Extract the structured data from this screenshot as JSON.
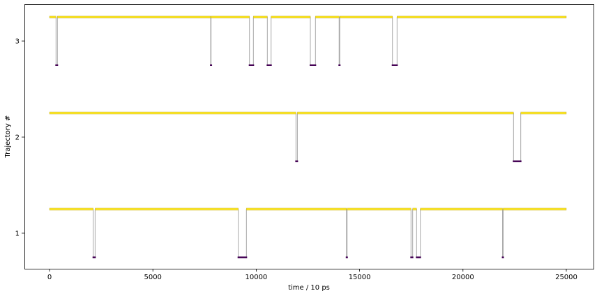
{
  "chart_data": {
    "type": "line",
    "title": "",
    "xlabel": "time / 10 ps",
    "ylabel": "Trajectory #",
    "xlim": [
      -1215,
      26316
    ],
    "ylim": [
      0.63,
      3.384
    ],
    "xticks": [
      0,
      5000,
      10000,
      15000,
      20000,
      25000
    ],
    "xtick_labels": [
      "0",
      "5000",
      "10000",
      "15000",
      "20000",
      "25000"
    ],
    "yticks": [
      1,
      2,
      3
    ],
    "ytick_labels": [
      "1",
      "2",
      "3"
    ],
    "grid": false,
    "state_offset": 0.25,
    "colors": {
      "upper_state": "#fde725",
      "upper_edge": "#b8a32a",
      "lower_state": "#440154",
      "transition": "#a8a8a8"
    },
    "series": [
      {
        "trajectory": 1,
        "t_end": 25000,
        "lower_intervals": [
          [
            2115,
            2205
          ],
          [
            9132,
            9525
          ],
          [
            14365,
            14395
          ],
          [
            17487,
            17567
          ],
          [
            17757,
            17938
          ],
          [
            21915,
            21945
          ]
        ]
      },
      {
        "trajectory": 2,
        "t_end": 25000,
        "lower_intervals": [
          [
            11922,
            11990
          ],
          [
            22447,
            22796
          ]
        ]
      },
      {
        "trajectory": 3,
        "t_end": 25000,
        "lower_intervals": [
          [
            314,
            381
          ],
          [
            7795,
            7815
          ],
          [
            9672,
            9862
          ],
          [
            10537,
            10718
          ],
          [
            12618,
            12865
          ],
          [
            14010,
            14040
          ],
          [
            16589,
            16813
          ]
        ]
      }
    ]
  }
}
